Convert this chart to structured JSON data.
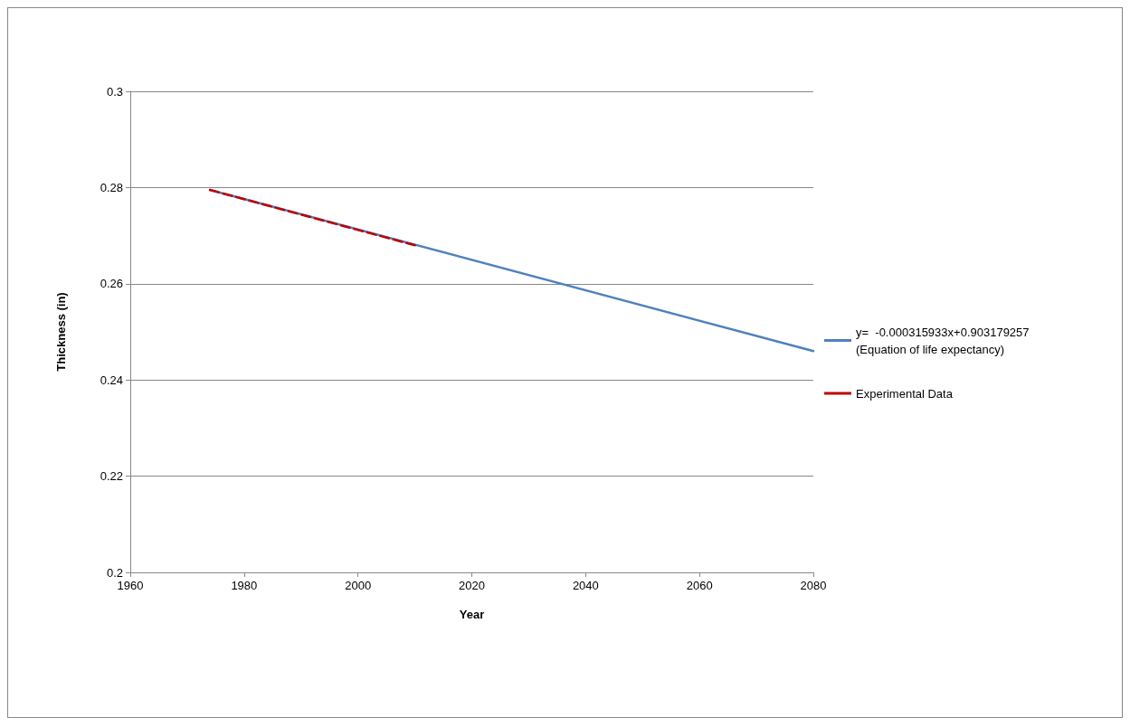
{
  "chart_data": {
    "type": "line",
    "xlabel": "Year",
    "ylabel": "Thickness (in)",
    "xlim": [
      1960,
      2080
    ],
    "xticks": [
      1960,
      1980,
      2000,
      2020,
      2040,
      2060,
      2080
    ],
    "ylim": [
      0.2,
      0.3
    ],
    "yticks": [
      0.2,
      0.22,
      0.24,
      0.26,
      0.28,
      0.3
    ],
    "grid": "y",
    "legend": "right",
    "marker": "none",
    "series": [
      {
        "name": "y=  -0.000315933x+0.903179257\n(Equation of life expectancy)",
        "color": "#4f81bd",
        "x": [
          1974,
          2080
        ],
        "values": [
          0.2795,
          0.246
        ],
        "line_style": "solid"
      },
      {
        "name": "Experimental Data",
        "color": "#c00000",
        "x": [
          1974,
          2010
        ],
        "values": [
          0.2795,
          0.268
        ],
        "line_style": "dashed"
      }
    ]
  }
}
